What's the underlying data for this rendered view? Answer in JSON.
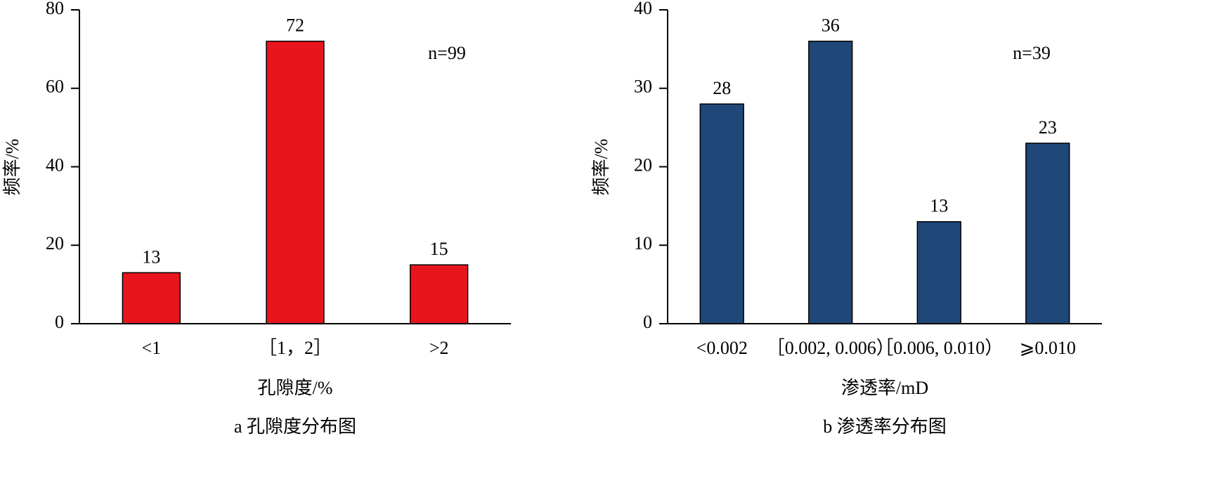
{
  "chart_data": [
    {
      "type": "bar",
      "caption": "a  孔隙度分布图",
      "x_label": "孔隙度/%",
      "y_label": "频率/%",
      "annotation": "n=99",
      "categories": [
        "<1",
        "［1，2］",
        ">2"
      ],
      "values": [
        13,
        72,
        15
      ],
      "color": "#e8141e",
      "ylim": [
        0,
        80
      ],
      "yticks": [
        0,
        20,
        40,
        60,
        80
      ]
    },
    {
      "type": "bar",
      "caption": "b  渗透率分布图",
      "x_label": "渗透率/mD",
      "y_label": "频率/%",
      "annotation": "n=39",
      "categories": [
        "<0.002",
        "［0.002, 0.006）",
        "［0.006, 0.010）",
        "⩾0.010"
      ],
      "values": [
        28,
        36,
        13,
        23
      ],
      "color": "#1f4778",
      "ylim": [
        0,
        40
      ],
      "yticks": [
        0,
        10,
        20,
        30,
        40
      ]
    }
  ]
}
